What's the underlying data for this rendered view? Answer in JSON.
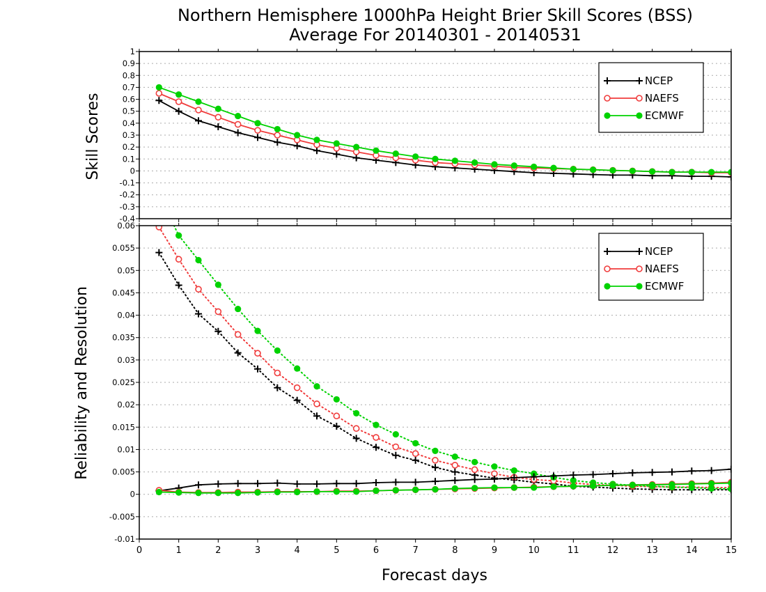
{
  "colors": {
    "NCEP": "#000000",
    "NAEFS": "#f03c3c",
    "ECMWF": "#00d200",
    "grid": "#aaaaaa"
  },
  "chart_data": [
    {
      "type": "line",
      "title": "Northern Hemisphere 1000hPa Height Brier Skill Scores (BSS)",
      "subtitle": "Average For 20140301 - 20140531",
      "xlabel": "",
      "ylabel": "Skill Scores",
      "xlim": [
        0,
        15
      ],
      "ylim": [
        -0.4,
        1
      ],
      "yticks": [
        -0.4,
        -0.3,
        -0.2,
        -0.1,
        0,
        0.1,
        0.2,
        0.3,
        0.4,
        0.5,
        0.6,
        0.7,
        0.8,
        0.9,
        1
      ],
      "ytick_labels": [
        "-0.4",
        "-0.3",
        "-0.2",
        "-0.1",
        "0",
        "0.1",
        "0.2",
        "0.3",
        "0.4",
        "0.5",
        "0.6",
        "0.7",
        "0.8",
        "0.9",
        "1"
      ],
      "grid": true,
      "legend_position": "top-right",
      "x": [
        0.5,
        1,
        1.5,
        2,
        2.5,
        3,
        3.5,
        4,
        4.5,
        5,
        5.5,
        6,
        6.5,
        7,
        7.5,
        8,
        8.5,
        9,
        9.5,
        10,
        10.5,
        11,
        11.5,
        12,
        12.5,
        13,
        13.5,
        14,
        14.5,
        15
      ],
      "series": [
        {
          "name": "NCEP",
          "style": "solid",
          "marker": "plus",
          "values": [
            0.59,
            0.5,
            0.42,
            0.37,
            0.32,
            0.28,
            0.24,
            0.21,
            0.17,
            0.14,
            0.11,
            0.09,
            0.07,
            0.05,
            0.035,
            0.025,
            0.015,
            0.005,
            -0.005,
            -0.015,
            -0.02,
            -0.025,
            -0.03,
            -0.035,
            -0.035,
            -0.04,
            -0.04,
            -0.045,
            -0.045,
            -0.05
          ]
        },
        {
          "name": "NAEFS",
          "style": "solid",
          "marker": "open-circle",
          "values": [
            0.65,
            0.58,
            0.51,
            0.45,
            0.39,
            0.34,
            0.3,
            0.26,
            0.22,
            0.19,
            0.16,
            0.13,
            0.11,
            0.09,
            0.07,
            0.06,
            0.05,
            0.04,
            0.03,
            0.025,
            0.02,
            0.015,
            0.01,
            0.005,
            0.0,
            -0.005,
            -0.01,
            -0.01,
            -0.015,
            -0.015
          ]
        },
        {
          "name": "ECMWF",
          "style": "solid",
          "marker": "filled-circle",
          "values": [
            0.7,
            0.64,
            0.58,
            0.52,
            0.46,
            0.4,
            0.35,
            0.3,
            0.26,
            0.23,
            0.2,
            0.17,
            0.145,
            0.12,
            0.1,
            0.085,
            0.07,
            0.055,
            0.045,
            0.035,
            0.025,
            0.015,
            0.01,
            0.005,
            0.0,
            -0.005,
            -0.01,
            -0.01,
            -0.01,
            -0.01
          ]
        }
      ]
    },
    {
      "type": "line",
      "title": "",
      "xlabel": "Forecast days",
      "ylabel": "Reliability and Resolution",
      "xlim": [
        0,
        15
      ],
      "ylim": [
        -0.01,
        0.06
      ],
      "xticks": [
        0,
        1,
        2,
        3,
        4,
        5,
        6,
        7,
        8,
        9,
        10,
        11,
        12,
        13,
        14,
        15
      ],
      "xtick_labels": [
        "0",
        "1",
        "2",
        "3",
        "4",
        "5",
        "6",
        "7",
        "8",
        "9",
        "10",
        "11",
        "12",
        "13",
        "14",
        "15"
      ],
      "yticks": [
        -0.01,
        -0.005,
        0,
        0.005,
        0.01,
        0.015,
        0.02,
        0.025,
        0.03,
        0.035,
        0.04,
        0.045,
        0.05,
        0.055,
        0.06
      ],
      "ytick_labels": [
        "-0.01",
        "-0.005",
        "0",
        "0.005",
        "0.01",
        "0.015",
        "0.02",
        "0.025",
        "0.03",
        "0.035",
        "0.04",
        "0.045",
        "0.05",
        "0.055",
        "0.06"
      ],
      "grid": true,
      "legend_position": "top-right",
      "legend_entries": [
        "NCEP",
        "NAEFS",
        "ECMWF"
      ],
      "x": [
        0.5,
        1,
        1.5,
        2,
        2.5,
        3,
        3.5,
        4,
        4.5,
        5,
        5.5,
        6,
        6.5,
        7,
        7.5,
        8,
        8.5,
        9,
        9.5,
        10,
        10.5,
        11,
        11.5,
        12,
        12.5,
        13,
        13.5,
        14,
        14.5,
        15
      ],
      "series": [
        {
          "name": "NCEP",
          "style": "dotted",
          "marker": "plus",
          "values": [
            0.054,
            0.0467,
            0.0403,
            0.0364,
            0.0316,
            0.028,
            0.0238,
            0.021,
            0.0175,
            0.0152,
            0.0125,
            0.0105,
            0.0087,
            0.0076,
            0.006,
            0.005,
            0.0043,
            0.0036,
            0.0032,
            0.0027,
            0.0023,
            0.0018,
            0.0016,
            0.0014,
            0.0012,
            0.0011,
            0.001,
            0.001,
            0.001,
            0.001
          ]
        },
        {
          "name": "NAEFS",
          "style": "dotted",
          "marker": "open-circle",
          "values": [
            0.0597,
            0.0525,
            0.0458,
            0.0408,
            0.0357,
            0.0315,
            0.0271,
            0.0238,
            0.0202,
            0.0175,
            0.0147,
            0.0127,
            0.0106,
            0.0091,
            0.0076,
            0.0065,
            0.0055,
            0.0046,
            0.0038,
            0.0033,
            0.003,
            0.0025,
            0.0022,
            0.002,
            0.0018,
            0.0017,
            0.0016,
            0.0016,
            0.0015,
            0.0015
          ]
        },
        {
          "name": "ECMWF",
          "style": "dotted",
          "marker": "filled-circle",
          "values": [
            0.067,
            0.0578,
            0.0523,
            0.0468,
            0.0414,
            0.0365,
            0.0321,
            0.0281,
            0.0241,
            0.0212,
            0.0181,
            0.0155,
            0.0134,
            0.0114,
            0.0097,
            0.0084,
            0.0072,
            0.0062,
            0.0053,
            0.0046,
            0.0038,
            0.0031,
            0.0026,
            0.0023,
            0.002,
            0.0018,
            0.0016,
            0.0015,
            0.0013,
            0.0012
          ]
        },
        {
          "name": "NCEP",
          "style": "solid",
          "marker": "plus",
          "values": [
            0.0008,
            0.0014,
            0.0021,
            0.0023,
            0.0024,
            0.0024,
            0.0025,
            0.0023,
            0.0023,
            0.0024,
            0.0024,
            0.0026,
            0.0027,
            0.0027,
            0.0029,
            0.0031,
            0.0033,
            0.0034,
            0.0037,
            0.0039,
            0.0041,
            0.0043,
            0.0044,
            0.0046,
            0.0048,
            0.0049,
            0.005,
            0.0052,
            0.0053,
            0.0056
          ]
        },
        {
          "name": "NAEFS",
          "style": "solid",
          "marker": "open-circle",
          "values": [
            0.0009,
            0.0005,
            0.0004,
            0.0004,
            0.0005,
            0.0005,
            0.0006,
            0.0006,
            0.0006,
            0.0007,
            0.0007,
            0.0008,
            0.0009,
            0.001,
            0.0011,
            0.0012,
            0.0013,
            0.0014,
            0.0015,
            0.0016,
            0.0017,
            0.0018,
            0.0019,
            0.002,
            0.0021,
            0.0022,
            0.0023,
            0.0024,
            0.0025,
            0.0027
          ]
        },
        {
          "name": "ECMWF",
          "style": "solid",
          "marker": "filled-circle",
          "values": [
            0.0005,
            0.0004,
            0.0003,
            0.0003,
            0.0003,
            0.0004,
            0.0005,
            0.0005,
            0.0006,
            0.0006,
            0.0006,
            0.0008,
            0.0009,
            0.001,
            0.0011,
            0.0013,
            0.0014,
            0.0015,
            0.0015,
            0.0015,
            0.0017,
            0.0018,
            0.0019,
            0.002,
            0.0021,
            0.0021,
            0.0022,
            0.0023,
            0.0024,
            0.0025
          ]
        }
      ]
    }
  ]
}
